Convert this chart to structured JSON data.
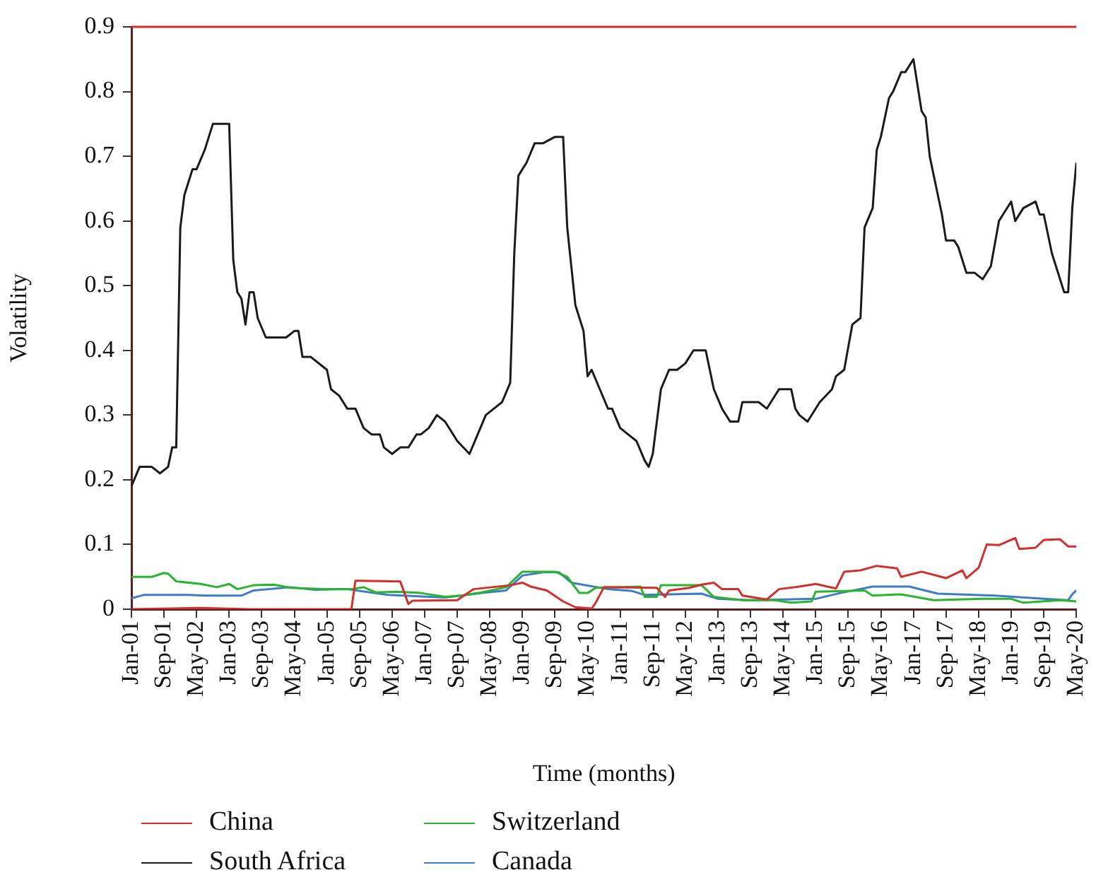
{
  "chart_data": {
    "type": "line",
    "xlabel": "Time (months)",
    "ylabel": "Volatility",
    "xlim": [
      "2001-01",
      "2020-05"
    ],
    "xticks": [
      {
        "value": "2001-01",
        "label": "Jan-01"
      },
      {
        "value": "2001-09",
        "label": "Sep-01"
      },
      {
        "value": "2002-05",
        "label": "May-02"
      },
      {
        "value": "2003-01",
        "label": "Jan-03"
      },
      {
        "value": "2003-09",
        "label": "Sep-03"
      },
      {
        "value": "2004-05",
        "label": "May-04"
      },
      {
        "value": "2005-01",
        "label": "Jan-05"
      },
      {
        "value": "2005-09",
        "label": "Sep-05"
      },
      {
        "value": "2006-05",
        "label": "May-06"
      },
      {
        "value": "2007-01",
        "label": "Jan-07"
      },
      {
        "value": "2007-09",
        "label": "Sep-07"
      },
      {
        "value": "2008-05",
        "label": "May-08"
      },
      {
        "value": "2009-01",
        "label": "Jan-09"
      },
      {
        "value": "2009-09",
        "label": "Sep-09"
      },
      {
        "value": "2010-05",
        "label": "May-10"
      },
      {
        "value": "2011-01",
        "label": "Jan-11"
      },
      {
        "value": "2011-09",
        "label": "Sep-11"
      },
      {
        "value": "2012-05",
        "label": "May-12"
      },
      {
        "value": "2013-01",
        "label": "Jan-13"
      },
      {
        "value": "2013-09",
        "label": "Sep-13"
      },
      {
        "value": "2014-05",
        "label": "May-14"
      },
      {
        "value": "2015-01",
        "label": "Jan-15"
      },
      {
        "value": "2015-09",
        "label": "Sep-15"
      },
      {
        "value": "2016-05",
        "label": "May-16"
      },
      {
        "value": "2017-01",
        "label": "Jan-17"
      },
      {
        "value": "2017-09",
        "label": "Sep-17"
      },
      {
        "value": "2018-05",
        "label": "May-18"
      },
      {
        "value": "2019-01",
        "label": "Jan-19"
      },
      {
        "value": "2019-09",
        "label": "Sep-19"
      },
      {
        "value": "2020-05",
        "label": "May-20"
      }
    ],
    "ylim": [
      0,
      0.9
    ],
    "yticks": [
      0,
      0.1,
      0.2,
      0.3,
      0.4,
      0.5,
      0.6,
      0.7,
      0.8,
      0.9
    ],
    "grid": false,
    "legend": "bottom left",
    "marker": "none",
    "line_style": "solid",
    "series": [
      {
        "name": "China",
        "color": "#d2302c",
        "x": [
          "2001-01",
          "2002-06",
          "2003-06",
          "2005-07",
          "2005-08",
          "2006-07",
          "2006-09",
          "2006-10",
          "2007-09",
          "2008-01",
          "2008-10",
          "2009-01",
          "2009-03",
          "2009-07",
          "2009-11",
          "2010-02",
          "2010-06",
          "2010-07",
          "2010-09",
          "2011-10",
          "2011-12",
          "2012-01",
          "2012-06",
          "2012-09",
          "2012-12",
          "2013-02",
          "2013-06",
          "2013-07",
          "2014-01",
          "2014-04",
          "2014-09",
          "2015-01",
          "2015-06",
          "2015-08",
          "2015-12",
          "2016-04",
          "2016-09",
          "2016-10",
          "2017-03",
          "2017-09",
          "2018-01",
          "2018-02",
          "2018-05",
          "2018-07",
          "2018-10",
          "2019-02",
          "2019-03",
          "2019-07",
          "2019-09",
          "2020-01",
          "2020-03",
          "2020-05"
        ],
        "values": [
          0,
          0.002,
          0,
          0,
          0.044,
          0.043,
          0.008,
          0.013,
          0.014,
          0.031,
          0.037,
          0.041,
          0.035,
          0.029,
          0.012,
          0.003,
          0.001,
          0.01,
          0.034,
          0.033,
          0.019,
          0.029,
          0.033,
          0.038,
          0.041,
          0.031,
          0.031,
          0.021,
          0.015,
          0.031,
          0.035,
          0.039,
          0.032,
          0.058,
          0.06,
          0.067,
          0.063,
          0.05,
          0.058,
          0.048,
          0.06,
          0.048,
          0.064,
          0.1,
          0.099,
          0.11,
          0.093,
          0.095,
          0.107,
          0.108,
          0.097,
          0.097
        ]
      },
      {
        "name": "South Africa",
        "color": "#1a1a1a",
        "x": [
          "2001-01",
          "2001-03",
          "2001-06",
          "2001-08",
          "2001-10",
          "2001-11",
          "2001-12",
          "2002-01",
          "2002-02",
          "2002-04",
          "2002-05",
          "2002-07",
          "2002-08",
          "2002-09",
          "2002-11",
          "2003-01",
          "2003-02",
          "2003-03",
          "2003-04",
          "2003-05",
          "2003-06",
          "2003-07",
          "2003-08",
          "2003-10",
          "2003-12",
          "2004-01",
          "2004-03",
          "2004-05",
          "2004-06",
          "2004-07",
          "2004-09",
          "2005-01",
          "2005-02",
          "2005-04",
          "2005-06",
          "2005-08",
          "2005-10",
          "2005-12",
          "2006-02",
          "2006-03",
          "2006-05",
          "2006-07",
          "2006-09",
          "2006-11",
          "2006-12",
          "2007-02",
          "2007-04",
          "2007-06",
          "2007-08",
          "2007-09",
          "2007-12",
          "2008-02",
          "2008-04",
          "2008-06",
          "2008-08",
          "2008-10",
          "2008-11",
          "2008-12",
          "2009-02",
          "2009-04",
          "2009-06",
          "2009-09",
          "2009-11",
          "2009-12",
          "2010-02",
          "2010-04",
          "2010-05",
          "2010-06",
          "2010-08",
          "2010-10",
          "2010-11",
          "2011-01",
          "2011-03",
          "2011-05",
          "2011-07",
          "2011-08",
          "2011-09",
          "2011-11",
          "2012-01",
          "2012-03",
          "2012-05",
          "2012-07",
          "2012-09",
          "2012-10",
          "2012-12",
          "2013-02",
          "2013-04",
          "2013-06",
          "2013-07",
          "2013-08",
          "2013-10",
          "2013-11",
          "2014-01",
          "2014-04",
          "2014-07",
          "2014-08",
          "2014-09",
          "2014-11",
          "2015-01",
          "2015-02",
          "2015-05",
          "2015-06",
          "2015-08",
          "2015-10",
          "2015-12",
          "2016-01",
          "2016-03",
          "2016-04",
          "2016-05",
          "2016-07",
          "2016-08",
          "2016-10",
          "2016-11",
          "2017-01",
          "2017-03",
          "2017-04",
          "2017-05",
          "2017-06",
          "2017-08",
          "2017-09",
          "2017-11",
          "2017-12",
          "2018-02",
          "2018-04",
          "2018-06",
          "2018-08",
          "2018-10",
          "2018-11",
          "2019-01",
          "2019-02",
          "2019-04",
          "2019-07",
          "2019-08",
          "2019-09",
          "2019-11",
          "2019-12",
          "2020-02",
          "2020-03",
          "2020-04",
          "2020-05"
        ],
        "values": [
          0.19,
          0.22,
          0.22,
          0.21,
          0.22,
          0.25,
          0.25,
          0.59,
          0.64,
          0.68,
          0.68,
          0.71,
          0.73,
          0.75,
          0.75,
          0.75,
          0.54,
          0.49,
          0.48,
          0.44,
          0.49,
          0.49,
          0.45,
          0.42,
          0.42,
          0.42,
          0.42,
          0.43,
          0.43,
          0.39,
          0.39,
          0.37,
          0.34,
          0.33,
          0.31,
          0.31,
          0.28,
          0.27,
          0.27,
          0.25,
          0.24,
          0.25,
          0.25,
          0.27,
          0.27,
          0.28,
          0.3,
          0.29,
          0.27,
          0.26,
          0.24,
          0.27,
          0.3,
          0.31,
          0.32,
          0.35,
          0.55,
          0.67,
          0.69,
          0.72,
          0.72,
          0.73,
          0.73,
          0.59,
          0.47,
          0.43,
          0.36,
          0.37,
          0.34,
          0.31,
          0.31,
          0.28,
          0.27,
          0.26,
          0.23,
          0.22,
          0.24,
          0.34,
          0.37,
          0.37,
          0.38,
          0.4,
          0.4,
          0.4,
          0.34,
          0.31,
          0.29,
          0.29,
          0.32,
          0.32,
          0.32,
          0.32,
          0.31,
          0.34,
          0.34,
          0.31,
          0.3,
          0.29,
          0.31,
          0.32,
          0.34,
          0.36,
          0.37,
          0.44,
          0.45,
          0.59,
          0.62,
          0.71,
          0.73,
          0.79,
          0.8,
          0.83,
          0.83,
          0.85,
          0.77,
          0.76,
          0.7,
          0.67,
          0.61,
          0.57,
          0.57,
          0.56,
          0.52,
          0.52,
          0.51,
          0.53,
          0.6,
          0.61,
          0.63,
          0.6,
          0.62,
          0.63,
          0.61,
          0.61,
          0.55,
          0.53,
          0.49,
          0.49,
          0.62,
          0.69
        ]
      },
      {
        "name": "Switzerland",
        "color": "#2bb52e",
        "x": [
          "2001-01",
          "2001-06",
          "2001-09",
          "2001-10",
          "2001-12",
          "2002-06",
          "2002-10",
          "2003-01",
          "2003-03",
          "2003-07",
          "2003-12",
          "2004-04",
          "2004-12",
          "2005-07",
          "2005-10",
          "2006-01",
          "2006-06",
          "2006-12",
          "2007-06",
          "2007-10",
          "2008-03",
          "2008-09",
          "2009-01",
          "2009-09",
          "2009-12",
          "2010-03",
          "2010-05",
          "2010-07",
          "2011-06",
          "2011-07",
          "2011-10",
          "2011-11",
          "2012-09",
          "2012-12",
          "2013-07",
          "2014-03",
          "2014-07",
          "2014-12",
          "2015-01",
          "2016-01",
          "2016-03",
          "2016-10",
          "2017-06",
          "2018-06",
          "2019-01",
          "2019-04",
          "2020-01",
          "2020-05"
        ],
        "values": [
          0.05,
          0.05,
          0.056,
          0.055,
          0.043,
          0.039,
          0.034,
          0.039,
          0.031,
          0.037,
          0.038,
          0.033,
          0.031,
          0.031,
          0.034,
          0.026,
          0.027,
          0.025,
          0.019,
          0.021,
          0.026,
          0.034,
          0.058,
          0.058,
          0.05,
          0.025,
          0.025,
          0.033,
          0.035,
          0.019,
          0.019,
          0.037,
          0.037,
          0.019,
          0.014,
          0.014,
          0.01,
          0.012,
          0.027,
          0.029,
          0.021,
          0.023,
          0.014,
          0.016,
          0.016,
          0.01,
          0.014,
          0.012
        ]
      },
      {
        "name": "Canada",
        "color": "#3d7cc9",
        "x": [
          "2001-01",
          "2001-04",
          "2002-03",
          "2002-07",
          "2003-04",
          "2003-07",
          "2004-04",
          "2004-10",
          "2005-06",
          "2006-04",
          "2007-06",
          "2008-03",
          "2008-09",
          "2009-01",
          "2009-06",
          "2009-10",
          "2010-01",
          "2010-10",
          "2011-04",
          "2011-07",
          "2012-09",
          "2013-01",
          "2013-09",
          "2015-01",
          "2015-07",
          "2016-03",
          "2016-12",
          "2017-07",
          "2018-09",
          "2019-09",
          "2020-03",
          "2020-04",
          "2020-05"
        ],
        "values": [
          0.017,
          0.022,
          0.022,
          0.021,
          0.021,
          0.029,
          0.034,
          0.03,
          0.031,
          0.022,
          0.018,
          0.025,
          0.029,
          0.052,
          0.057,
          0.057,
          0.041,
          0.031,
          0.028,
          0.022,
          0.024,
          0.016,
          0.014,
          0.016,
          0.025,
          0.035,
          0.035,
          0.024,
          0.021,
          0.016,
          0.014,
          0.023,
          0.029
        ]
      }
    ]
  }
}
